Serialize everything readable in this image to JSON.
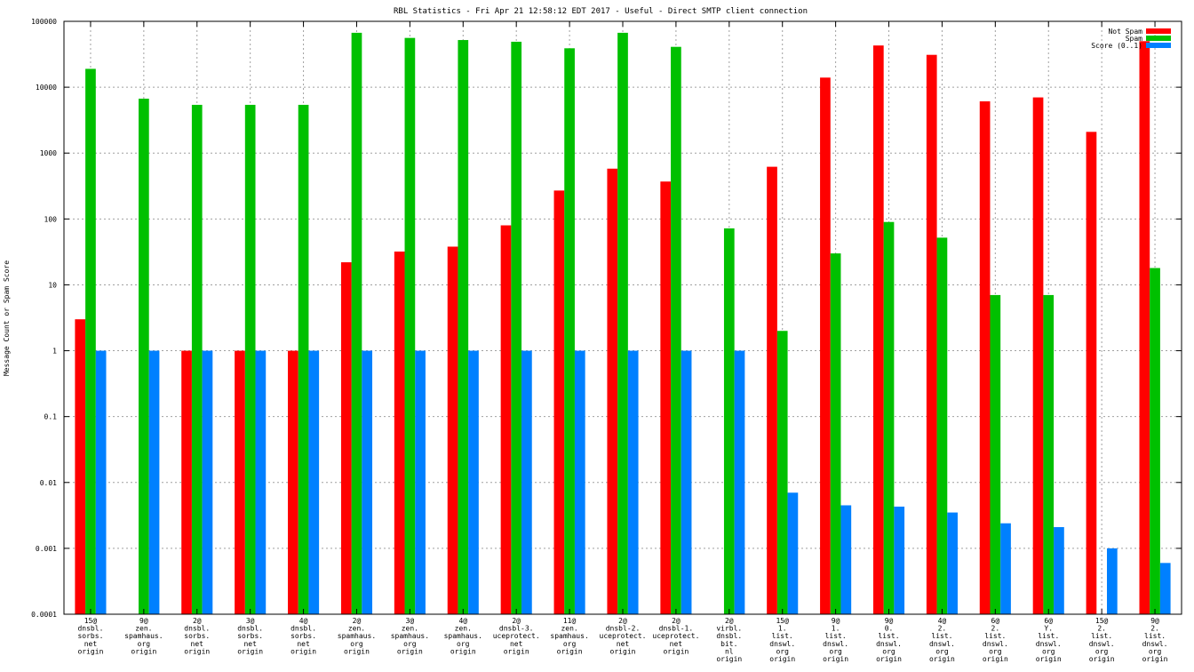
{
  "chart_data": {
    "type": "bar",
    "title": "RBL Statistics - Fri Apr 21 12:58:12 EDT 2017 - Useful - Direct SMTP client connection",
    "xlabel": "",
    "ylabel": "Message Count or Spam Score",
    "yscale": "log",
    "ylim": [
      0.0001,
      100000
    ],
    "yticks": [
      "0.0001",
      "0.001",
      "0.01",
      "0.1",
      "1",
      "10",
      "100",
      "1000",
      "10000",
      "100000"
    ],
    "grid": true,
    "legend_position": "top-right",
    "categories": [
      [
        "15@",
        "dnsbl.",
        "sorbs.",
        "net",
        "origin"
      ],
      [
        "9@",
        "zen.",
        "spamhaus.",
        "org",
        "origin"
      ],
      [
        "2@",
        "dnsbl.",
        "sorbs.",
        "net",
        "origin"
      ],
      [
        "3@",
        "dnsbl.",
        "sorbs.",
        "net",
        "origin"
      ],
      [
        "4@",
        "dnsbl.",
        "sorbs.",
        "net",
        "origin"
      ],
      [
        "2@",
        "zen.",
        "spamhaus.",
        "org",
        "origin"
      ],
      [
        "3@",
        "zen.",
        "spamhaus.",
        "org",
        "origin"
      ],
      [
        "4@",
        "zen.",
        "spamhaus.",
        "org",
        "origin"
      ],
      [
        "2@",
        "dnsbl-3.",
        "uceprotect.",
        "net",
        "origin"
      ],
      [
        "11@",
        "zen.",
        "spamhaus.",
        "org",
        "origin"
      ],
      [
        "2@",
        "dnsbl-2.",
        "uceprotect.",
        "net",
        "origin"
      ],
      [
        "2@",
        "dnsbl-1.",
        "uceprotect.",
        "net",
        "origin"
      ],
      [
        "2@",
        "virbl.",
        "dnsbl.",
        "bit.",
        "nl",
        "origin"
      ],
      [
        "15@",
        "1.",
        "list.",
        "dnswl.",
        "org",
        "origin"
      ],
      [
        "9@",
        "1.",
        "list.",
        "dnswl.",
        "org",
        "origin"
      ],
      [
        "9@",
        "0.",
        "list.",
        "dnswl.",
        "org",
        "origin"
      ],
      [
        "4@",
        "2.",
        "list.",
        "dnswl.",
        "org",
        "origin"
      ],
      [
        "6@",
        "2.",
        "list.",
        "dnswl.",
        "org",
        "origin"
      ],
      [
        "6@",
        "Y.",
        "list.",
        "dnswl.",
        "org",
        "origin"
      ],
      [
        "15@",
        "2.",
        "list.",
        "dnswl.",
        "org",
        "origin"
      ],
      [
        "9@",
        "2.",
        "list.",
        "dnswl.",
        "org",
        "origin"
      ]
    ],
    "series": [
      {
        "name": "Not Spam",
        "color": "#ff0000",
        "values": [
          3,
          null,
          1,
          1,
          1,
          22,
          32,
          38,
          80,
          270,
          580,
          370,
          null,
          620,
          14000,
          43000,
          31000,
          6100,
          7000,
          2100,
          50000
        ]
      },
      {
        "name": "Spam",
        "color": "#00c000",
        "values": [
          19000,
          6700,
          5400,
          5400,
          5400,
          67000,
          56000,
          52000,
          49000,
          39000,
          67000,
          41000,
          72,
          2,
          30,
          90,
          52,
          7,
          7,
          null,
          18
        ]
      },
      {
        "name": "Score (0..1)",
        "color": "#0080ff",
        "values": [
          1,
          1,
          1,
          1,
          1,
          1,
          1,
          1,
          1,
          1,
          1,
          1,
          1,
          0.007,
          0.0045,
          0.0043,
          0.0035,
          0.0024,
          0.0021,
          0.001,
          0.0006
        ]
      }
    ]
  }
}
